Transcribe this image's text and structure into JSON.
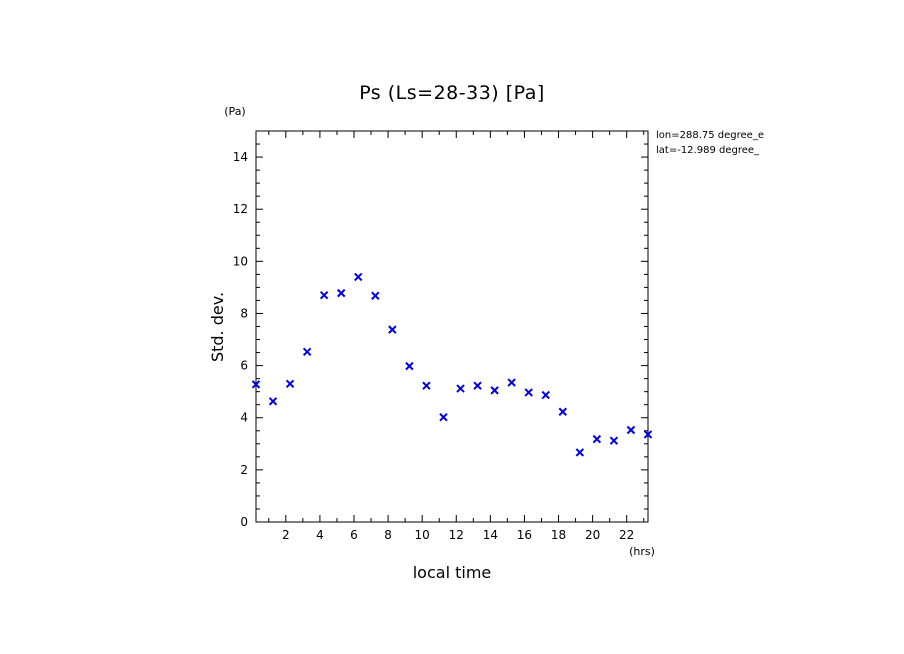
{
  "chart_data": {
    "type": "scatter",
    "title": "Ps (Ls=28-33) [Pa]",
    "xlabel": "local time",
    "ylabel": "Std. dev.",
    "x_unit": "(hrs)",
    "y_unit": "(Pa)",
    "xlim": [
      0.25,
      23.25
    ],
    "ylim": [
      0,
      15
    ],
    "x_ticks": [
      2,
      4,
      6,
      8,
      10,
      12,
      14,
      16,
      18,
      20,
      22
    ],
    "y_ticks": [
      0,
      2,
      4,
      6,
      8,
      10,
      12,
      14
    ],
    "x_tick_labels": [
      "2",
      "4",
      "6",
      "8",
      "10",
      "12",
      "14",
      "16",
      "18",
      "20",
      "22"
    ],
    "y_tick_labels": [
      "0",
      "2",
      "4",
      "6",
      "8",
      "10",
      "12",
      "14"
    ],
    "marker": "x",
    "marker_color": "#0000dd",
    "grid": false,
    "legend": "none",
    "annotations": [
      "lon=288.75 degree_e",
      "lat=-12.989 degree_"
    ],
    "series": [
      {
        "x": [
          0.25,
          1.25,
          2.25,
          3.25,
          4.25,
          5.25,
          6.25,
          7.25,
          8.25,
          9.25,
          10.25,
          11.25,
          12.25,
          13.25,
          14.25,
          15.25,
          16.25,
          17.25,
          18.25,
          19.25,
          20.25,
          21.25,
          22.25,
          23.25
        ],
        "y": [
          5.28,
          4.63,
          5.3,
          6.53,
          8.7,
          8.78,
          9.4,
          8.68,
          7.38,
          5.98,
          5.23,
          4.02,
          5.12,
          5.23,
          5.05,
          5.35,
          4.97,
          4.87,
          4.23,
          2.67,
          3.18,
          3.12,
          3.53,
          3.36
        ]
      }
    ]
  }
}
